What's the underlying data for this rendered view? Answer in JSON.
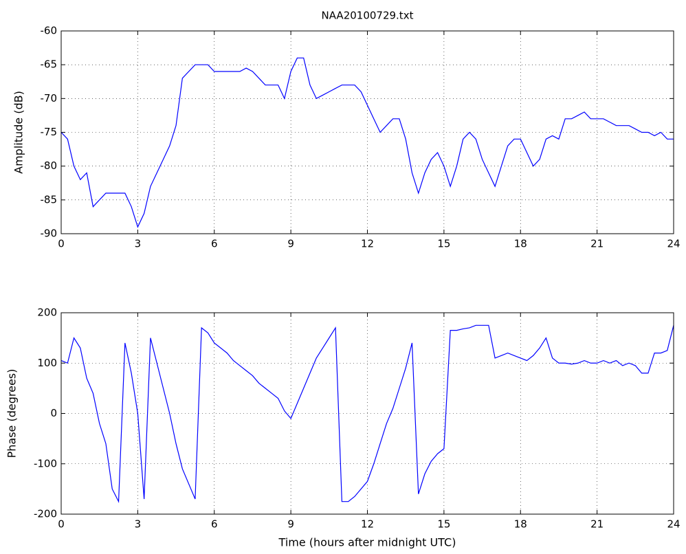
{
  "chart_data": [
    {
      "type": "line",
      "title": "NAA20100729.txt",
      "y_label": "Amplitude (dB)",
      "x": [
        0,
        0.25,
        0.5,
        0.75,
        1,
        1.25,
        1.5,
        1.75,
        2,
        2.25,
        2.5,
        2.75,
        3,
        3.25,
        3.5,
        3.75,
        4,
        4.25,
        4.5,
        4.75,
        5,
        5.25,
        5.5,
        5.75,
        6,
        6.25,
        6.5,
        6.75,
        7,
        7.25,
        7.5,
        7.75,
        8,
        8.25,
        8.5,
        8.75,
        9,
        9.25,
        9.5,
        9.75,
        10,
        10.25,
        10.5,
        10.75,
        11,
        11.25,
        11.5,
        11.75,
        12,
        12.25,
        12.5,
        12.75,
        13,
        13.25,
        13.5,
        13.75,
        14,
        14.25,
        14.5,
        14.75,
        15,
        15.25,
        15.5,
        15.75,
        16,
        16.25,
        16.5,
        16.75,
        17,
        17.25,
        17.5,
        17.75,
        18,
        18.25,
        18.5,
        18.75,
        19,
        19.25,
        19.5,
        19.75,
        20,
        20.25,
        20.5,
        20.75,
        21,
        21.25,
        21.5,
        21.75,
        22,
        22.25,
        22.5,
        22.75,
        23,
        23.25,
        23.5,
        23.75,
        24
      ],
      "values": [
        -75,
        -76,
        -80,
        -82,
        -81,
        -86,
        -85,
        -84,
        -84,
        -84,
        -84,
        -86,
        -89,
        -87,
        -83,
        -81,
        -79,
        -77,
        -74,
        -67,
        -66,
        -65,
        -65,
        -65,
        -66,
        -66,
        -66,
        -66,
        -66,
        -65.5,
        -66,
        -67,
        -68,
        -68,
        -68,
        -70,
        -66,
        -64,
        -64,
        -68,
        -70,
        -69.5,
        -69,
        -68.5,
        -68,
        -68,
        -68,
        -69,
        -71,
        -73,
        -75,
        -74,
        -73,
        -73,
        -76,
        -81,
        -84,
        -81,
        -79,
        -78,
        -80,
        -83,
        -80,
        -76,
        -75,
        -76,
        -79,
        -81,
        -83,
        -80,
        -77,
        -76,
        -76,
        -78,
        -80,
        -79,
        -76,
        -75.5,
        -76,
        -73,
        -73,
        -72.5,
        -72,
        -73,
        -73,
        -73,
        -73.5,
        -74,
        -74,
        -74,
        -74.5,
        -75,
        -75,
        -75.5,
        -75,
        -76,
        -76
      ],
      "color": "#0000ff",
      "xlim": [
        0,
        24
      ],
      "xticks": [
        0,
        3,
        6,
        9,
        12,
        15,
        18,
        21,
        24
      ],
      "ylim": [
        -90,
        -60
      ],
      "yticks": [
        -90,
        -85,
        -80,
        -75,
        -70,
        -65,
        -60
      ],
      "grid": true
    },
    {
      "type": "line",
      "x_label": "Time (hours after midnight UTC)",
      "y_label": "Phase (degrees)",
      "x": [
        0,
        0.25,
        0.5,
        0.75,
        1,
        1.25,
        1.5,
        1.75,
        2,
        2.25,
        2.5,
        2.75,
        3,
        3.25,
        3.5,
        3.75,
        4,
        4.25,
        4.5,
        4.75,
        5,
        5.25,
        5.5,
        5.75,
        6,
        6.25,
        6.5,
        6.75,
        7,
        7.25,
        7.5,
        7.75,
        8,
        8.25,
        8.5,
        8.75,
        9,
        9.25,
        9.5,
        9.75,
        10,
        10.25,
        10.5,
        10.75,
        11,
        11.25,
        11.5,
        11.75,
        12,
        12.25,
        12.5,
        12.75,
        13,
        13.25,
        13.5,
        13.75,
        14,
        14.25,
        14.5,
        14.75,
        15,
        15.25,
        15.5,
        15.75,
        16,
        16.25,
        16.5,
        16.75,
        17,
        17.25,
        17.5,
        17.75,
        18,
        18.25,
        18.5,
        18.75,
        19,
        19.25,
        19.5,
        19.75,
        20,
        20.25,
        20.5,
        20.75,
        21,
        21.25,
        21.5,
        21.75,
        22,
        22.25,
        22.5,
        22.75,
        23,
        23.25,
        23.5,
        23.75,
        24
      ],
      "values": [
        105,
        100,
        150,
        130,
        70,
        40,
        -20,
        -60,
        -150,
        -175,
        140,
        80,
        0,
        -170,
        150,
        100,
        50,
        0,
        -60,
        -110,
        -140,
        -170,
        170,
        160,
        140,
        130,
        120,
        105,
        95,
        85,
        75,
        60,
        50,
        40,
        30,
        5,
        -10,
        20,
        50,
        80,
        110,
        130,
        150,
        170,
        -175,
        -175,
        -165,
        -150,
        -135,
        -100,
        -60,
        -20,
        10,
        50,
        90,
        140,
        -160,
        -120,
        -95,
        -80,
        -70,
        165,
        165,
        168,
        170,
        175,
        175,
        175,
        110,
        115,
        120,
        115,
        110,
        105,
        115,
        130,
        150,
        110,
        100,
        100,
        98,
        100,
        105,
        100,
        100,
        105,
        100,
        105,
        95,
        100,
        95,
        80,
        80,
        120,
        120,
        125,
        175
      ],
      "color": "#0000ff",
      "xlim": [
        0,
        24
      ],
      "xticks": [
        0,
        3,
        6,
        9,
        12,
        15,
        18,
        21,
        24
      ],
      "ylim": [
        -200,
        200
      ],
      "yticks": [
        -200,
        -100,
        0,
        100,
        200
      ],
      "grid": true
    }
  ]
}
